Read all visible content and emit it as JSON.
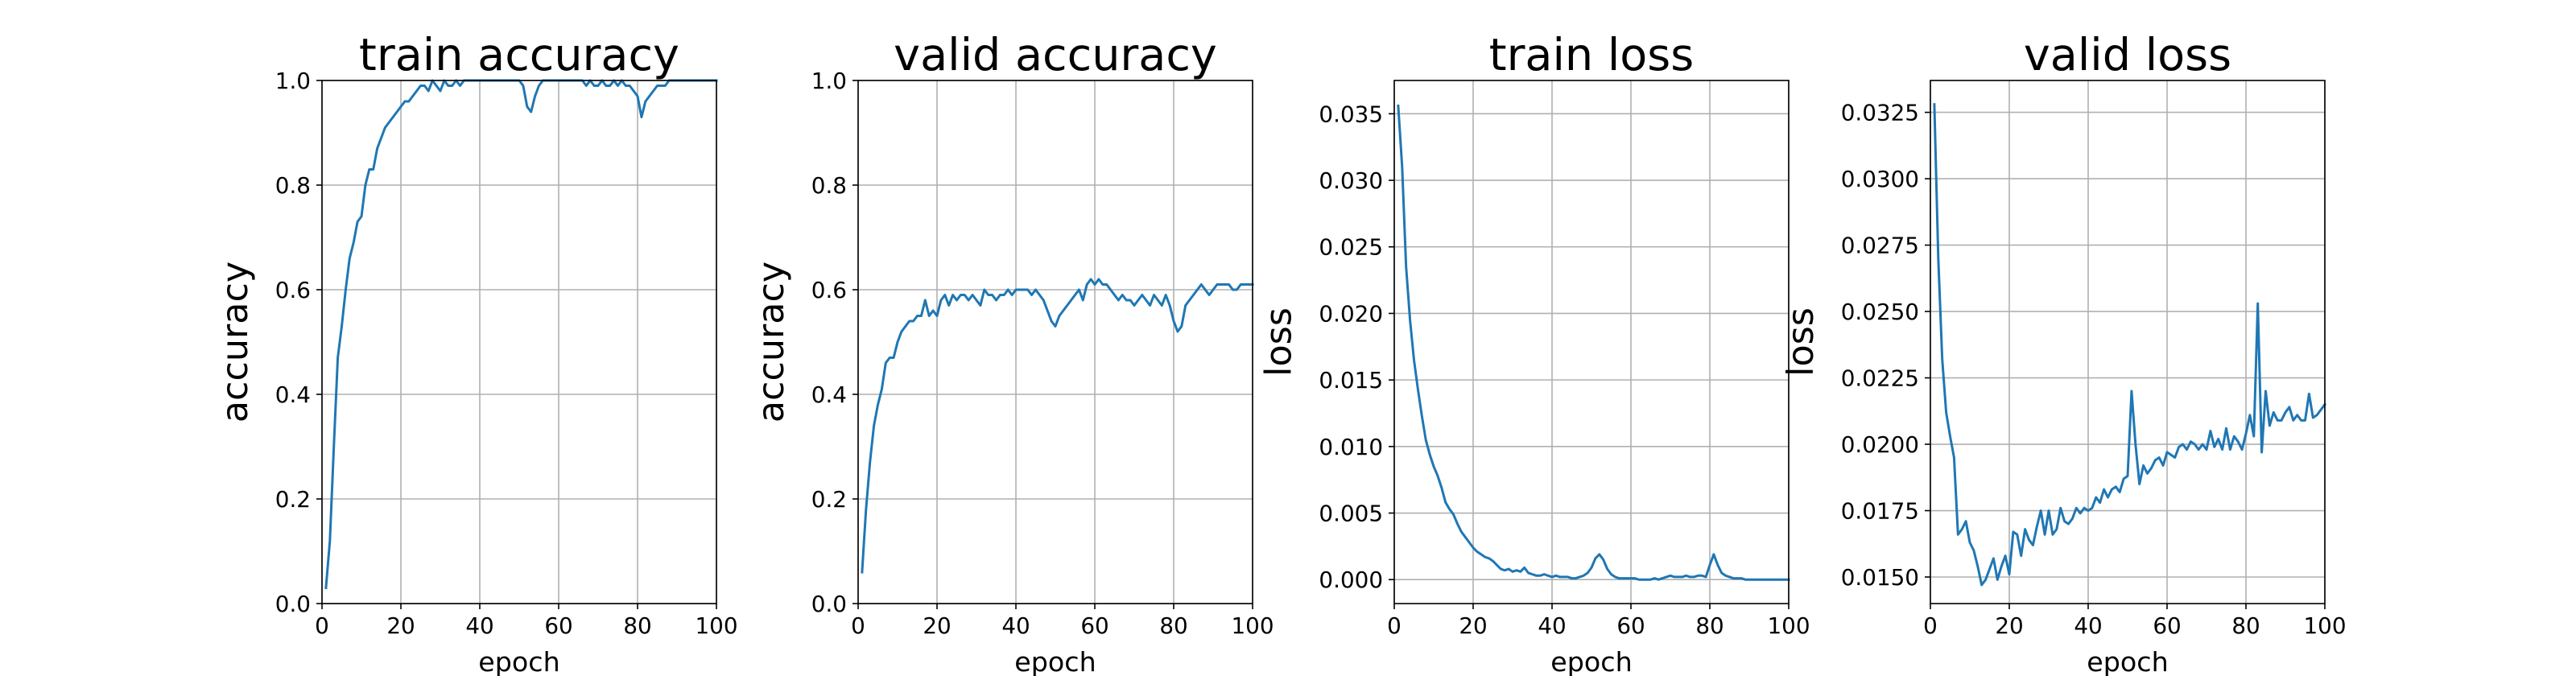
{
  "chart_data": [
    {
      "type": "line",
      "title": "train accuracy",
      "xlabel": "epoch",
      "ylabel": "accuracy",
      "xlim": [
        0,
        100
      ],
      "ylim": [
        0,
        1
      ],
      "xticks": [
        0,
        20,
        40,
        60,
        80,
        100
      ],
      "xtick_labels": [
        "0",
        "20",
        "40",
        "60",
        "80",
        "100"
      ],
      "yticks": [
        0,
        0.2,
        0.4,
        0.6,
        0.8,
        1.0
      ],
      "ytick_labels": [
        "0.0",
        "0.2",
        "0.4",
        "0.6",
        "0.8",
        "1.0"
      ],
      "grid": true,
      "series": [
        {
          "name": "train accuracy",
          "color": "#1f77b4",
          "x": [
            1,
            2,
            3,
            4,
            5,
            6,
            7,
            8,
            9,
            10,
            11,
            12,
            13,
            14,
            15,
            16,
            17,
            18,
            19,
            20,
            21,
            22,
            23,
            24,
            25,
            26,
            27,
            28,
            29,
            30,
            31,
            32,
            33,
            34,
            35,
            36,
            37,
            38,
            39,
            40,
            41,
            42,
            43,
            44,
            45,
            46,
            47,
            48,
            49,
            50,
            51,
            52,
            53,
            54,
            55,
            56,
            57,
            58,
            59,
            60,
            61,
            62,
            63,
            64,
            65,
            66,
            67,
            68,
            69,
            70,
            71,
            72,
            73,
            74,
            75,
            76,
            77,
            78,
            79,
            80,
            81,
            82,
            83,
            84,
            85,
            86,
            87,
            88,
            89,
            90,
            91,
            92,
            93,
            94,
            95,
            96,
            97,
            98,
            99,
            100
          ],
          "y": [
            0.03,
            0.12,
            0.3,
            0.47,
            0.53,
            0.6,
            0.66,
            0.69,
            0.73,
            0.74,
            0.8,
            0.83,
            0.83,
            0.87,
            0.89,
            0.91,
            0.92,
            0.93,
            0.94,
            0.95,
            0.96,
            0.96,
            0.97,
            0.98,
            0.99,
            0.99,
            0.98,
            1.0,
            0.99,
            0.98,
            1.0,
            0.99,
            0.99,
            1.0,
            0.99,
            1.0,
            1.0,
            1.0,
            1.0,
            1.0,
            1.0,
            1.0,
            1.0,
            1.0,
            1.0,
            1.0,
            1.0,
            1.0,
            1.0,
            1.0,
            0.99,
            0.95,
            0.94,
            0.97,
            0.99,
            1.0,
            1.0,
            1.0,
            1.0,
            1.0,
            1.0,
            1.0,
            1.0,
            1.0,
            1.0,
            1.0,
            0.99,
            1.0,
            0.99,
            0.99,
            1.0,
            0.99,
            0.99,
            1.0,
            0.99,
            1.0,
            0.99,
            0.99,
            0.98,
            0.97,
            0.93,
            0.96,
            0.97,
            0.98,
            0.99,
            0.99,
            0.99,
            1.0,
            1.0,
            1.0,
            1.0,
            1.0,
            1.0,
            1.0,
            1.0,
            1.0,
            1.0,
            1.0,
            1.0,
            1.0
          ]
        }
      ]
    },
    {
      "type": "line",
      "title": "valid accuracy",
      "xlabel": "epoch",
      "ylabel": "accuracy",
      "xlim": [
        0,
        100
      ],
      "ylim": [
        0,
        1
      ],
      "xticks": [
        0,
        20,
        40,
        60,
        80,
        100
      ],
      "xtick_labels": [
        "0",
        "20",
        "40",
        "60",
        "80",
        "100"
      ],
      "yticks": [
        0,
        0.2,
        0.4,
        0.6,
        0.8,
        1.0
      ],
      "ytick_labels": [
        "0.0",
        "0.2",
        "0.4",
        "0.6",
        "0.8",
        "1.0"
      ],
      "grid": true,
      "series": [
        {
          "name": "valid accuracy",
          "color": "#1f77b4",
          "x": [
            1,
            2,
            3,
            4,
            5,
            6,
            7,
            8,
            9,
            10,
            11,
            12,
            13,
            14,
            15,
            16,
            17,
            18,
            19,
            20,
            21,
            22,
            23,
            24,
            25,
            26,
            27,
            28,
            29,
            30,
            31,
            32,
            33,
            34,
            35,
            36,
            37,
            38,
            39,
            40,
            41,
            42,
            43,
            44,
            45,
            46,
            47,
            48,
            49,
            50,
            51,
            52,
            53,
            54,
            55,
            56,
            57,
            58,
            59,
            60,
            61,
            62,
            63,
            64,
            65,
            66,
            67,
            68,
            69,
            70,
            71,
            72,
            73,
            74,
            75,
            76,
            77,
            78,
            79,
            80,
            81,
            82,
            83,
            84,
            85,
            86,
            87,
            88,
            89,
            90,
            91,
            92,
            93,
            94,
            95,
            96,
            97,
            98,
            99,
            100
          ],
          "y": [
            0.06,
            0.18,
            0.27,
            0.34,
            0.38,
            0.41,
            0.46,
            0.47,
            0.47,
            0.5,
            0.52,
            0.53,
            0.54,
            0.54,
            0.55,
            0.55,
            0.58,
            0.55,
            0.56,
            0.55,
            0.58,
            0.59,
            0.57,
            0.59,
            0.58,
            0.59,
            0.59,
            0.58,
            0.59,
            0.58,
            0.57,
            0.6,
            0.59,
            0.59,
            0.58,
            0.59,
            0.59,
            0.6,
            0.59,
            0.6,
            0.6,
            0.6,
            0.6,
            0.59,
            0.6,
            0.59,
            0.58,
            0.56,
            0.54,
            0.53,
            0.55,
            0.56,
            0.57,
            0.58,
            0.59,
            0.6,
            0.58,
            0.61,
            0.62,
            0.61,
            0.62,
            0.61,
            0.61,
            0.6,
            0.59,
            0.58,
            0.59,
            0.58,
            0.58,
            0.57,
            0.58,
            0.59,
            0.58,
            0.57,
            0.59,
            0.58,
            0.57,
            0.59,
            0.57,
            0.54,
            0.52,
            0.53,
            0.57,
            0.58,
            0.59,
            0.6,
            0.61,
            0.6,
            0.59,
            0.6,
            0.61,
            0.61,
            0.61,
            0.61,
            0.6,
            0.6,
            0.61,
            0.61,
            0.61,
            0.61
          ]
        }
      ]
    },
    {
      "type": "line",
      "title": "train loss",
      "xlabel": "epoch",
      "ylabel": "loss",
      "xlim": [
        0,
        100
      ],
      "ylim": [
        -0.0018,
        0.0375
      ],
      "xticks": [
        0,
        20,
        40,
        60,
        80,
        100
      ],
      "xtick_labels": [
        "0",
        "20",
        "40",
        "60",
        "80",
        "100"
      ],
      "yticks": [
        0,
        0.005,
        0.01,
        0.015,
        0.02,
        0.025,
        0.03,
        0.035
      ],
      "ytick_labels": [
        "0.000",
        "0.005",
        "0.010",
        "0.015",
        "0.020",
        "0.025",
        "0.030",
        "0.035"
      ],
      "grid": true,
      "series": [
        {
          "name": "train loss",
          "color": "#1f77b4",
          "x": [
            1,
            2,
            3,
            4,
            5,
            6,
            7,
            8,
            9,
            10,
            11,
            12,
            13,
            14,
            15,
            16,
            17,
            18,
            19,
            20,
            21,
            22,
            23,
            24,
            25,
            26,
            27,
            28,
            29,
            30,
            31,
            32,
            33,
            34,
            35,
            36,
            37,
            38,
            39,
            40,
            41,
            42,
            43,
            44,
            45,
            46,
            47,
            48,
            49,
            50,
            51,
            52,
            53,
            54,
            55,
            56,
            57,
            58,
            59,
            60,
            61,
            62,
            63,
            64,
            65,
            66,
            67,
            68,
            69,
            70,
            71,
            72,
            73,
            74,
            75,
            76,
            77,
            78,
            79,
            80,
            81,
            82,
            83,
            84,
            85,
            86,
            87,
            88,
            89,
            90,
            91,
            92,
            93,
            94,
            95,
            96,
            97,
            98,
            99,
            100
          ],
          "y": [
            0.0356,
            0.031,
            0.0235,
            0.0195,
            0.0165,
            0.0143,
            0.0123,
            0.0105,
            0.0094,
            0.0085,
            0.0078,
            0.0069,
            0.0058,
            0.0053,
            0.0049,
            0.0042,
            0.0036,
            0.0032,
            0.0028,
            0.0024,
            0.0021,
            0.0019,
            0.0017,
            0.0016,
            0.0014,
            0.0011,
            0.0008,
            0.0007,
            0.0008,
            0.0006,
            0.0007,
            0.0006,
            0.0009,
            0.0005,
            0.0004,
            0.0003,
            0.0003,
            0.0004,
            0.0003,
            0.0002,
            0.0003,
            0.0002,
            0.0002,
            0.0002,
            0.0001,
            0.0001,
            0.0002,
            0.0003,
            0.0005,
            0.0009,
            0.0016,
            0.0019,
            0.0015,
            0.0008,
            0.0004,
            0.0002,
            0.0001,
            0.0001,
            0.0001,
            0.0001,
            0.0001,
            0.0,
            0.0,
            0.0,
            0.0,
            0.0001,
            0.0,
            0.0001,
            0.0002,
            0.0003,
            0.0002,
            0.0002,
            0.0002,
            0.0003,
            0.0002,
            0.0002,
            0.0003,
            0.0003,
            0.0002,
            0.0011,
            0.0019,
            0.0011,
            0.0005,
            0.0003,
            0.0002,
            0.0001,
            0.0001,
            0.0001,
            0.0,
            0.0,
            0.0,
            0.0,
            0.0,
            0.0,
            0.0,
            0.0,
            0.0,
            0.0,
            0.0,
            0.0
          ]
        }
      ]
    },
    {
      "type": "line",
      "title": "valid loss",
      "xlabel": "epoch",
      "ylabel": "loss",
      "xlim": [
        0,
        100
      ],
      "ylim": [
        0.014,
        0.0337
      ],
      "xticks": [
        0,
        20,
        40,
        60,
        80,
        100
      ],
      "xtick_labels": [
        "0",
        "20",
        "40",
        "60",
        "80",
        "100"
      ],
      "yticks": [
        0.015,
        0.0175,
        0.02,
        0.0225,
        0.025,
        0.0275,
        0.03,
        0.0325
      ],
      "ytick_labels": [
        "0.0150",
        "0.0175",
        "0.0200",
        "0.0225",
        "0.0250",
        "0.0275",
        "0.0300",
        "0.0325"
      ],
      "grid": true,
      "series": [
        {
          "name": "valid loss",
          "color": "#1f77b4",
          "x": [
            1,
            2,
            3,
            4,
            5,
            6,
            7,
            8,
            9,
            10,
            11,
            12,
            13,
            14,
            15,
            16,
            17,
            18,
            19,
            20,
            21,
            22,
            23,
            24,
            25,
            26,
            27,
            28,
            29,
            30,
            31,
            32,
            33,
            34,
            35,
            36,
            37,
            38,
            39,
            40,
            41,
            42,
            43,
            44,
            45,
            46,
            47,
            48,
            49,
            50,
            51,
            52,
            53,
            54,
            55,
            56,
            57,
            58,
            59,
            60,
            61,
            62,
            63,
            64,
            65,
            66,
            67,
            68,
            69,
            70,
            71,
            72,
            73,
            74,
            75,
            76,
            77,
            78,
            79,
            80,
            81,
            82,
            83,
            84,
            85,
            86,
            87,
            88,
            89,
            90,
            91,
            92,
            93,
            94,
            95,
            96,
            97,
            98,
            99,
            100
          ],
          "y": [
            0.0328,
            0.027,
            0.0232,
            0.0212,
            0.0203,
            0.0195,
            0.0166,
            0.0168,
            0.0171,
            0.0163,
            0.016,
            0.0154,
            0.0147,
            0.0149,
            0.0153,
            0.0157,
            0.0149,
            0.0154,
            0.0158,
            0.0151,
            0.0167,
            0.0166,
            0.0158,
            0.0168,
            0.0164,
            0.0162,
            0.0169,
            0.0175,
            0.0166,
            0.0175,
            0.0166,
            0.0168,
            0.0176,
            0.0171,
            0.017,
            0.0172,
            0.0176,
            0.0174,
            0.0176,
            0.0175,
            0.0176,
            0.018,
            0.0178,
            0.0183,
            0.018,
            0.0183,
            0.0184,
            0.0182,
            0.0187,
            0.0188,
            0.022,
            0.02,
            0.0185,
            0.0192,
            0.0189,
            0.0191,
            0.0194,
            0.0195,
            0.0192,
            0.0197,
            0.0196,
            0.0195,
            0.0199,
            0.02,
            0.0198,
            0.0201,
            0.02,
            0.0198,
            0.02,
            0.0198,
            0.0205,
            0.0199,
            0.0202,
            0.0198,
            0.0206,
            0.0198,
            0.0203,
            0.0201,
            0.0198,
            0.0204,
            0.0211,
            0.0203,
            0.0253,
            0.0197,
            0.022,
            0.0207,
            0.0212,
            0.0209,
            0.0209,
            0.0212,
            0.0214,
            0.0209,
            0.0211,
            0.0209,
            0.0209,
            0.0219,
            0.021,
            0.0211,
            0.0213,
            0.0215
          ]
        }
      ]
    }
  ]
}
